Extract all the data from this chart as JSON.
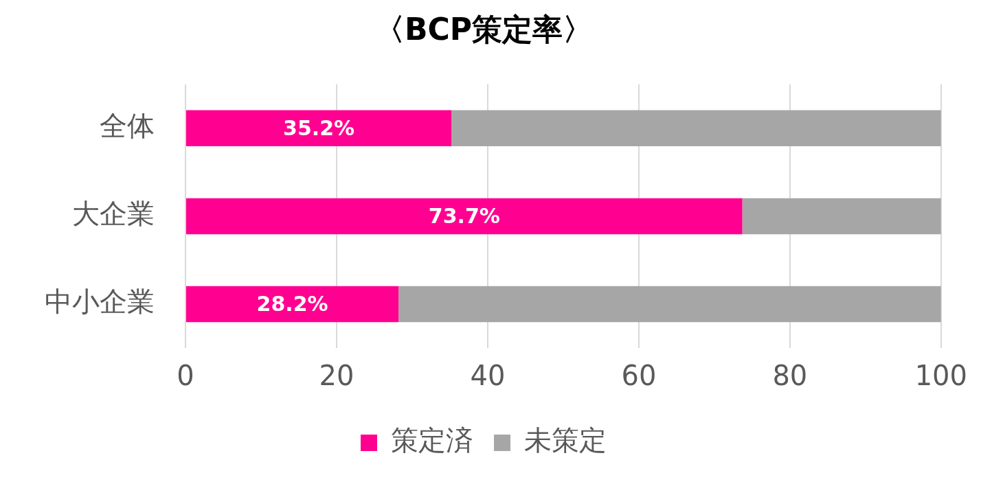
{
  "chart_data": {
    "type": "bar",
    "orientation": "horizontal",
    "stacked": true,
    "title": "〈BCP策定率〉",
    "categories": [
      "全体",
      "大企業",
      "中小企業"
    ],
    "series": [
      {
        "name": "策定済",
        "color": "#ff0090",
        "values": [
          35.2,
          73.7,
          28.2
        ],
        "value_labels": [
          "35.2%",
          "73.7%",
          "28.2%"
        ]
      },
      {
        "name": "未策定",
        "color": "#a6a6a6",
        "values": [
          64.8,
          26.3,
          71.8
        ]
      }
    ],
    "xlim": [
      0,
      100
    ],
    "xticks": [
      0,
      20,
      40,
      60,
      80,
      100
    ],
    "grid": "x",
    "legend": "bottom"
  }
}
